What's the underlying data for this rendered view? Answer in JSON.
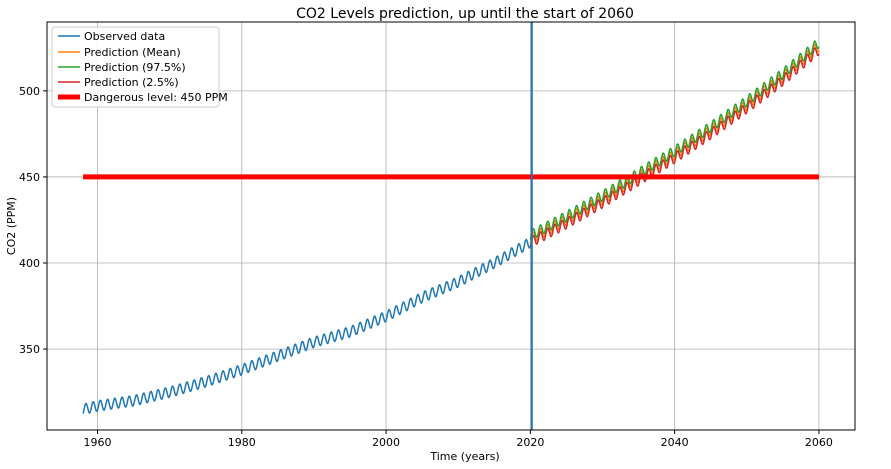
{
  "chart_data": {
    "type": "line",
    "title": "CO2 Levels prediction, up until the start of 2060",
    "xlabel": "Time (years)",
    "ylabel": "CO2 (PPM)",
    "xlim": [
      1953,
      2065
    ],
    "ylim": [
      303,
      540
    ],
    "xticks": [
      1960,
      1980,
      2000,
      2020,
      2040,
      2060
    ],
    "yticks": [
      350,
      400,
      450,
      500
    ],
    "grid": true,
    "legend_position": "top-left",
    "seasonal_amplitude_ppm": 3,
    "series": [
      {
        "name": "Observed data",
        "color": "#1f77b4",
        "x": [
          1958,
          1960,
          1965,
          1970,
          1975,
          1980,
          1985,
          1990,
          1995,
          2000,
          2005,
          2010,
          2015,
          2020
        ],
        "y": [
          315,
          317,
          320,
          325,
          331,
          338,
          346,
          354,
          360,
          369,
          380,
          389,
          400,
          412
        ]
      },
      {
        "name": "Prediction (Mean)",
        "color": "#ff7f0e",
        "x": [
          2020,
          2025,
          2030,
          2035,
          2040,
          2045,
          2050,
          2055,
          2060
        ],
        "y": [
          414,
          425,
          437,
          450,
          463,
          477,
          492,
          508,
          526
        ]
      },
      {
        "name": "Prediction (97.5%)",
        "color": "#2ca02c",
        "x": [
          2020,
          2025,
          2030,
          2035,
          2040,
          2045,
          2050,
          2055,
          2060
        ],
        "y": [
          416,
          427,
          439,
          452,
          465,
          479,
          494,
          510,
          528
        ]
      },
      {
        "name": "Prediction (2.5%)",
        "color": "#d62728",
        "x": [
          2020,
          2025,
          2030,
          2035,
          2040,
          2045,
          2050,
          2055,
          2060
        ],
        "y": [
          412,
          423,
          435,
          448,
          461,
          475,
          490,
          506,
          524
        ]
      },
      {
        "name": "Dangerous level: 450 PPM",
        "color": "#ff0000",
        "x": [
          1958,
          2060
        ],
        "y": [
          450,
          450
        ]
      }
    ],
    "vertical_line": {
      "x": 2020.2,
      "color": "#1f77b4"
    }
  }
}
